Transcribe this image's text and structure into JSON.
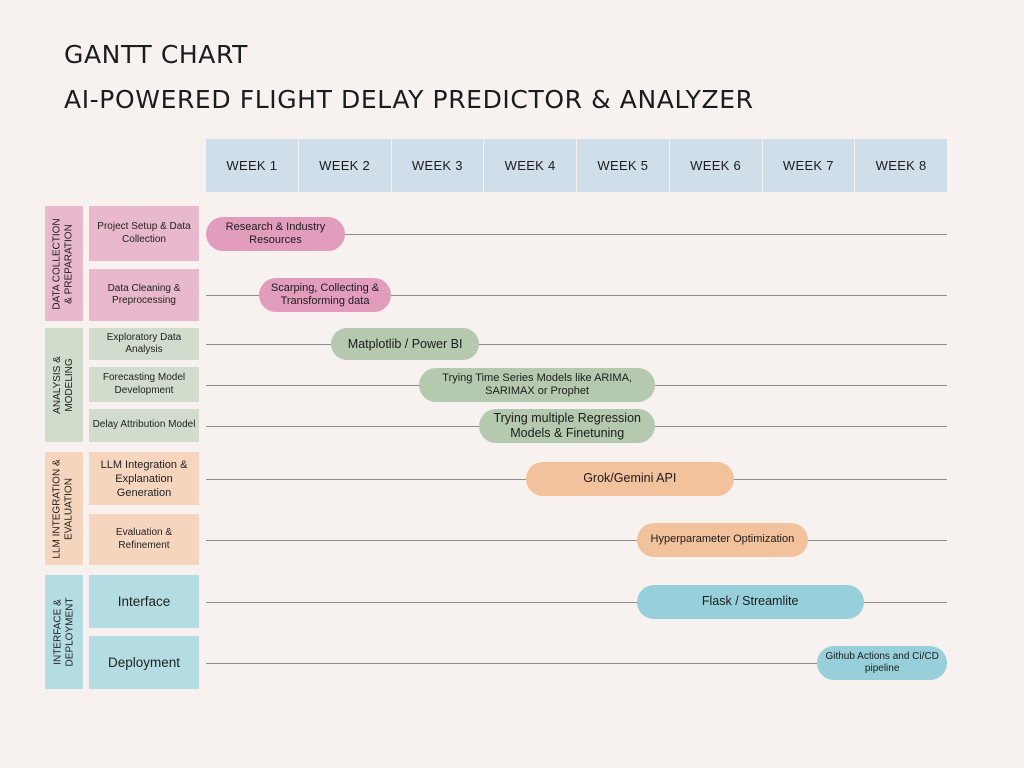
{
  "title": "GANTT CHART",
  "subtitle": "AI-POWERED FLIGHT DELAY PREDICTOR & ANALYZER",
  "colors": {
    "background": "#f7f2ef",
    "header": "#cfdee8",
    "pink": "#e8b8cc",
    "pink_bar": "#e29dbd",
    "green": "#d2dccc",
    "green_bar": "#b5c9af",
    "peach": "#f6d5bf",
    "peach_bar": "#f1c29c",
    "blue": "#b4dde3",
    "blue_bar": "#97d0da"
  },
  "weeks": [
    "WEEK 1",
    "WEEK 2",
    "WEEK 3",
    "WEEK 4",
    "WEEK 5",
    "WEEK 6",
    "WEEK 7",
    "WEEK 8"
  ],
  "chart_data": {
    "type": "gantt",
    "x_unit": "weeks",
    "xlim": [
      0,
      8
    ],
    "groups": [
      {
        "label": "DATA COLLECTION\n& PREPARATION",
        "color": "#e8b8cc",
        "bar_color": "#e29dbd",
        "tasks": [
          {
            "label": "Project Setup & Data Collection",
            "bar": "Research & Industry Resources",
            "start": 0.0,
            "end": 1.5
          },
          {
            "label": "Data Cleaning & Preprocessing",
            "bar": "Scarping, Collecting & Transforming data",
            "start": 0.57,
            "end": 2.0
          }
        ]
      },
      {
        "label": "ANALYSIS &\nMODELING",
        "color": "#d2dccc",
        "bar_color": "#b5c9af",
        "tasks": [
          {
            "label": "Exploratory Data Analysis",
            "bar": "Matplotlib / Power BI",
            "start": 1.35,
            "end": 2.95
          },
          {
            "label": "Forecasting Model Development",
            "bar": "Trying Time Series Models like ARIMA, SARIMAX or Prophet",
            "start": 2.3,
            "end": 4.85
          },
          {
            "label": "Delay Attribution Model",
            "bar": "Trying multiple Regression Models & Finetuning",
            "start": 2.95,
            "end": 4.85
          }
        ]
      },
      {
        "label": "LLM INTEGRATION &\nEVALUATION",
        "color": "#f6d5bf",
        "bar_color": "#f1c29c",
        "tasks": [
          {
            "label": "LLM Integration & Explanation Generation",
            "bar": "Grok/Gemini API",
            "start": 3.45,
            "end": 5.7
          },
          {
            "label": "Evaluation & Refinement",
            "bar": "Hyperparameter Optimization",
            "start": 4.65,
            "end": 6.5
          }
        ]
      },
      {
        "label": "INTERFACE &\nDEPLOYMENT",
        "color": "#b4dde3",
        "bar_color": "#97d0da",
        "tasks": [
          {
            "label": "Interface",
            "bar": "Flask / Streamlite",
            "start": 4.65,
            "end": 7.1
          },
          {
            "label": "Deployment",
            "bar": "Github Actions and Ci/CD pipeline",
            "start": 6.6,
            "end": 8.0
          }
        ]
      }
    ]
  }
}
